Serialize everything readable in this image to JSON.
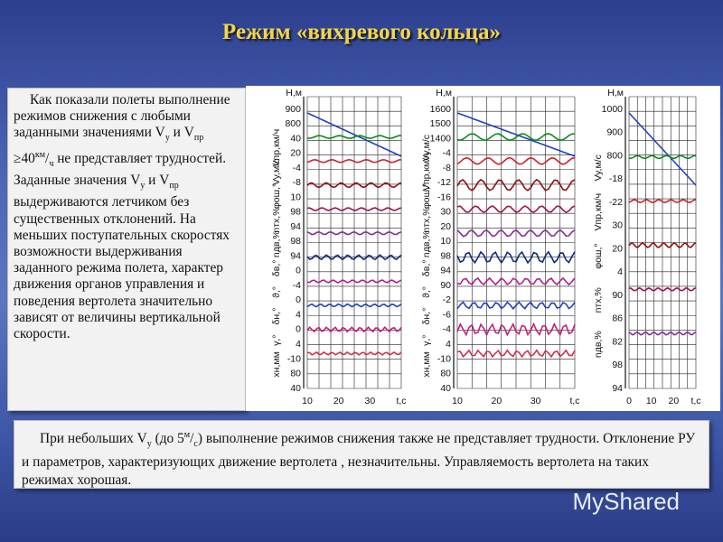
{
  "title": "Режим «вихревого кольца»",
  "left_text": [
    "Как показали полеты выполнение режимов снижения с любыми заданными значениями V",
    "y",
    " и V",
    "пр",
    " ≥40",
    "км",
    "/",
    "ч",
    " не представляет трудностей. Заданные значения V",
    "y",
    " и V",
    "пр",
    " выдерживаются летчиком без существенных отклонений. На меньших поступательных скоростях возможности выдерживания заданного режима полета, характер движения органов управления и поведения вертолета значительно зависят от величины вертикальной скорости."
  ],
  "bottom_text": [
    "При небольших V",
    "y",
    " (до 5",
    "м",
    "/",
    "c",
    ") выполнение режимов снижения также не представляет трудности. Отклонение РУ и параметров, характеризующих движение вертолета , незначительны. Управляемость вертолета на таких режимах хорошая."
  ],
  "panels": [
    {
      "names": [
        "Н,м",
        "Vпр,км/ч",
        "Vy,м/с",
        "φош,°",
        "nтх,%",
        "nдв,%",
        "δв,°",
        "ϑ,°",
        "δн,°",
        "γ,°",
        "хн,мм"
      ],
      "ticks": [
        "900",
        "800",
        "40",
        "20",
        "-4",
        "-8",
        "10",
        "98",
        "94",
        "98",
        "94",
        "0",
        "-4",
        "0",
        "4",
        "0",
        "4",
        "-10",
        "80",
        "40"
      ],
      "x_ticks": [
        "10",
        "20",
        "30",
        "t,c"
      ]
    },
    {
      "names": [
        "Н,м",
        "Vy,м/с",
        "Vпр,км/ч",
        "φош,°",
        "nтх,%",
        "nдв,%",
        "δв,°",
        "ϑ,°",
        "δн,°",
        "γ,°",
        "хн,мм"
      ],
      "ticks": [
        "1600",
        "1500",
        "1400",
        "-4",
        "-8",
        "-12",
        "-16",
        "30",
        "20",
        "10",
        "98",
        "94",
        "90",
        "-2",
        "-6",
        "-4",
        "4",
        "-10",
        "80",
        "40"
      ],
      "x_ticks": [
        "10",
        "20",
        "30",
        "t,c"
      ]
    },
    {
      "names": [
        "Н,м",
        "Vy,м/с",
        "Vпр,км/ч",
        "φош,°",
        "nтх,%",
        "nдв,%"
      ],
      "ticks": [
        "1000",
        "900",
        "800",
        "-18",
        "-22",
        "30",
        "20",
        "4",
        "90",
        "86",
        "82",
        "98",
        "94"
      ],
      "x_ticks": [
        "0",
        "10",
        "20",
        "t,c"
      ]
    }
  ],
  "watermark": "MyShared"
}
